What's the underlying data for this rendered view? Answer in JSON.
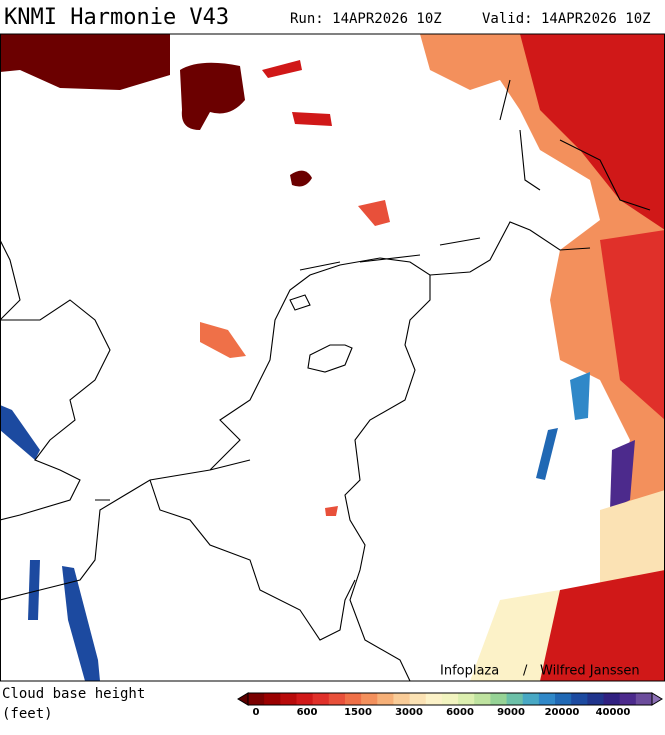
{
  "header": {
    "title": "KNMI Harmonie V43",
    "run": "Run: 14APR2026 10Z",
    "valid": "Valid: 14APR2026 10Z"
  },
  "map": {
    "credit_left": "Infoplaza",
    "credit_sep": "/",
    "credit_right": "Wilfred Janssen"
  },
  "legend": {
    "label_line1": "Cloud base height",
    "label_line2": "(feet)",
    "ticks": [
      "0",
      "600",
      "1500",
      "3000",
      "6000",
      "9000",
      "20000",
      "40000"
    ],
    "colors": [
      "#5a0000",
      "#7a0000",
      "#9a0000",
      "#b80a0a",
      "#d01818",
      "#e0302a",
      "#e8503a",
      "#ef7048",
      "#f3905c",
      "#f6b078",
      "#f9cc98",
      "#fbe2b4",
      "#fcf2c8",
      "#f2f4c0",
      "#dcefb0",
      "#bfe3a0",
      "#96d396",
      "#6cc0a8",
      "#48a8c4",
      "#3088c8",
      "#2068b4",
      "#1c4aa0",
      "#20348c",
      "#302080",
      "#4c2a8c",
      "#6c4c9c",
      "#8c70b4"
    ]
  }
}
